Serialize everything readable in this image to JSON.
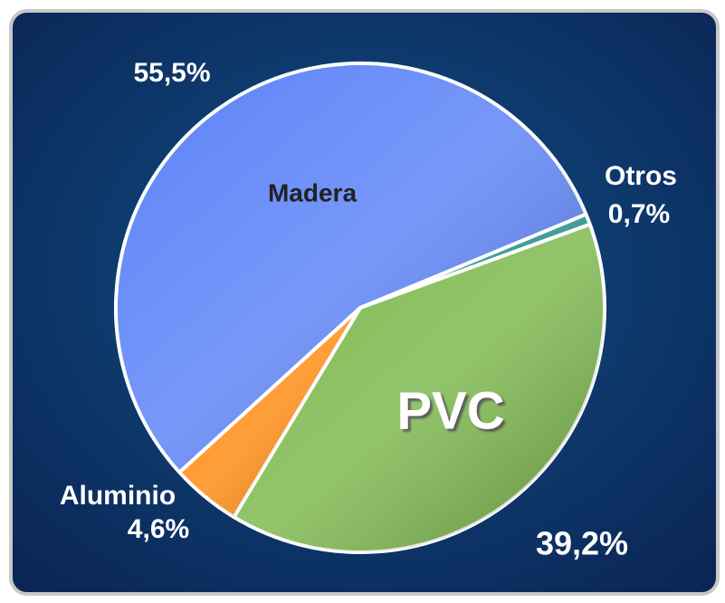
{
  "chart_data": {
    "type": "pie",
    "categories": [
      "Madera",
      "Otros",
      "PVC",
      "Aluminio"
    ],
    "values": [
      55.5,
      0.7,
      39.2,
      4.6
    ],
    "value_labels": [
      "55,5%",
      "0,7%",
      "39,2%",
      "4,6%"
    ],
    "colors": [
      "#5b82f8",
      "#1c8a82",
      "#7cb84c",
      "#ff8a10"
    ]
  }
}
